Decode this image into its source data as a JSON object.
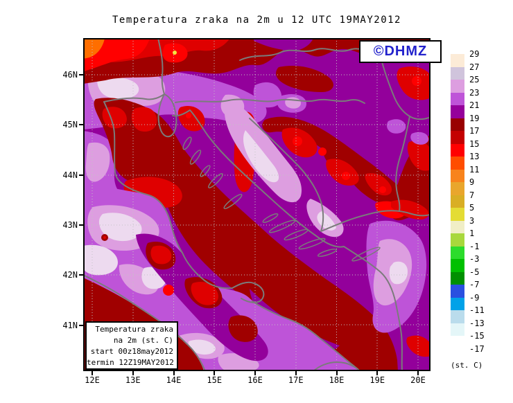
{
  "title": "Temperatura zraka na 2m u 12 UTC 19MAY2012",
  "logo": {
    "text": "©DHMZ"
  },
  "info_box": {
    "lines": [
      "Temperatura zraka",
      "na 2m (st. C)",
      "start 00z18may2012",
      "termin 12Z19MAY2012"
    ]
  },
  "axes": {
    "lat_labels": [
      "46N",
      "45N",
      "44N",
      "43N",
      "42N",
      "41N"
    ],
    "lon_labels": [
      "12E",
      "13E",
      "14E",
      "15E",
      "16E",
      "17E",
      "18E",
      "19E",
      "20E"
    ]
  },
  "colorbar": {
    "unit": "(st. C)",
    "tick_labels": [
      "29",
      "27",
      "25",
      "23",
      "21",
      "19",
      "17",
      "15",
      "13",
      "11",
      "9",
      "7",
      "5",
      "3",
      "1",
      "-1",
      "-3",
      "-5",
      "-7",
      "-9",
      "-11",
      "-13",
      "-15",
      "-17"
    ],
    "colors": [
      "#FCEBD7",
      "#D0C4DC",
      "#DD9EE0",
      "#BE54D8",
      "#95009B",
      "#990000",
      "#C40000",
      "#FF0000",
      "#FF4D00",
      "#F8831C",
      "#E9A62C",
      "#D9AE24",
      "#E4DC34",
      "#F0EEC6",
      "#A8D83C",
      "#2CDC2C",
      "#00C000",
      "#009000",
      "#2A50E0",
      "#00A2E8",
      "#BADCEC",
      "#E4F6F8",
      "#FFFFFF"
    ]
  },
  "map_palette": {
    "purple": "#93009B",
    "orchid": "#BE54D8",
    "plum": "#DD9EE0",
    "pale": "#EDDAEF",
    "maroon": "#A00000",
    "red": "#DF0000",
    "bright_red": "#FF0000",
    "orange": "#FF6E00",
    "coast": "#7B7B7B",
    "grid": "#C4C4C4",
    "logo_blue": "#2222CC"
  }
}
